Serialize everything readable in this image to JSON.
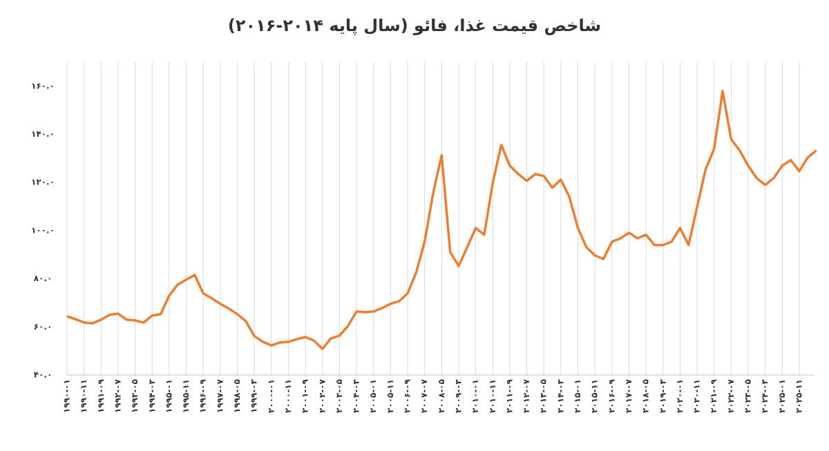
{
  "chart_data": {
    "type": "line",
    "title": "شاخص قیمت غذا، فائو (سال پایه ۲۰۱۴-۲۰۱۶)",
    "categories": [
      "۱۹۹۰-۰۱",
      null,
      "۱۹۹۰-۱۱",
      null,
      "۱۹۹۱-۰۹",
      null,
      "۱۹۹۲-۰۷",
      null,
      "۱۹۹۳-۰۵",
      null,
      "۱۹۹۴-۰۳",
      null,
      "۱۹۹۵-۰۱",
      null,
      "۱۹۹۵-۱۱",
      null,
      "۱۹۹۶-۰۹",
      null,
      "۱۹۹۷-۰۷",
      null,
      "۱۹۹۸-۰۵",
      null,
      "۱۹۹۹-۰۳",
      null,
      "۲۰۰۰-۰۱",
      null,
      "۲۰۰۰-۱۱",
      null,
      "۲۰۰۱-۰۹",
      null,
      "۲۰۰۲-۰۷",
      null,
      "۲۰۰۳-۰۵",
      null,
      "۲۰۰۴-۰۳",
      null,
      "۲۰۰۵-۰۱",
      null,
      "۲۰۰۵-۱۱",
      null,
      "۲۰۰۶-۰۹",
      null,
      "۲۰۰۷-۰۷",
      null,
      "۲۰۰۸-۰۵",
      null,
      "۲۰۰۹-۰۳",
      null,
      "۲۰۱۰-۰۱",
      null,
      "۲۰۱۰-۱۱",
      null,
      "۲۰۱۱-۰۹",
      null,
      "۲۰۱۲-۰۷",
      null,
      "۲۰۱۳-۰۵",
      null,
      "۲۰۱۴-۰۳",
      null,
      "۲۰۱۵-۰۱",
      null,
      "۲۰۱۵-۱۱",
      null,
      "۲۰۱۶-۰۹",
      null,
      "۲۰۱۷-۰۷",
      null,
      "۲۰۱۸-۰۵",
      null,
      "۲۰۱۹-۰۳",
      null,
      "۲۰۲۰-۰۱",
      null,
      "۲۰۲۰-۱۱",
      null,
      "۲۰۲۱-۰۹",
      null,
      "۲۰۲۲-۰۷",
      null,
      "۲۰۲۳-۰۵",
      null,
      "۲۰۲۴-۰۳",
      null,
      "۲۰۲۵-۰۱",
      null,
      "۲۰۲۵-۱۱",
      null,
      null
    ],
    "values": [
      64.4,
      63.2,
      61.8,
      61.5,
      63,
      65,
      65.5,
      63,
      62.7,
      61.8,
      64.7,
      65.3,
      73,
      77.6,
      79.6,
      81.6,
      73.9,
      71.9,
      69.6,
      67.6,
      65.3,
      62.4,
      56.2,
      53.8,
      52.3,
      53.5,
      53.8,
      54.9,
      55.8,
      54.3,
      50.9,
      55.2,
      56.4,
      60.4,
      66.4,
      66.1,
      66.4,
      67.8,
      69.6,
      70.7,
      73.9,
      82.5,
      95.4,
      115.5,
      131.3,
      91.1,
      85.3,
      93.1,
      101.1,
      98.3,
      119.8,
      135.6,
      127,
      123.5,
      120.7,
      123.5,
      122.7,
      117.8,
      121.2,
      114,
      101.1,
      93.1,
      89.7,
      88.2,
      95.4,
      96.8,
      99.1,
      96.8,
      98.3,
      94,
      94,
      95.4,
      101.1,
      94,
      109.8,
      125.5,
      134,
      158,
      138,
      133.3,
      127,
      121.8,
      119,
      121.8,
      127,
      129.3,
      124.7,
      130.4,
      133.3
    ],
    "color": "#ED7D31",
    "ylim": [
      40,
      170
    ],
    "yticks": [
      {
        "value": 40,
        "label": "۴۰.۰"
      },
      {
        "value": 60,
        "label": "۶۰.۰"
      },
      {
        "value": 80,
        "label": "۸۰.۰"
      },
      {
        "value": 100,
        "label": "۱۰۰.۰"
      },
      {
        "value": 120,
        "label": "۱۲۰.۰"
      },
      {
        "value": 140,
        "label": "۱۴۰.۰"
      },
      {
        "value": 160,
        "label": "۱۶۰.۰"
      }
    ],
    "grid": true
  }
}
